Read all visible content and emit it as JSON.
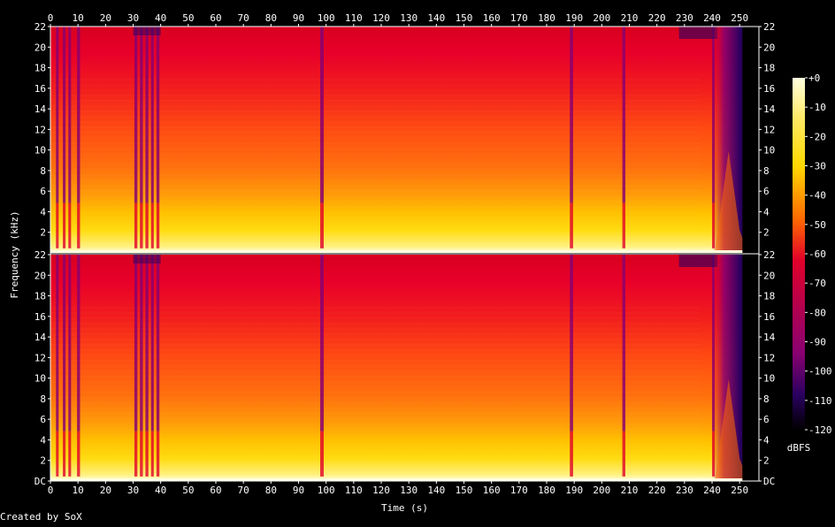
{
  "chart_data": {
    "type": "heatmap",
    "subtype": "spectrogram",
    "xlabel": "Time (s)",
    "ylabel": "Frequency (kHz)",
    "xlim": [
      0,
      257
    ],
    "x_ticks": [
      "0",
      "10",
      "20",
      "30",
      "40",
      "50",
      "60",
      "70",
      "80",
      "90",
      "100",
      "110",
      "120",
      "130",
      "140",
      "150",
      "160",
      "170",
      "180",
      "190",
      "200",
      "210",
      "220",
      "230",
      "240",
      "250"
    ],
    "channels": [
      {
        "ylim": [
          0,
          22
        ],
        "y_ticks": [
          "2",
          "4",
          "6",
          "8",
          "10",
          "12",
          "14",
          "16",
          "18",
          "20",
          "22"
        ]
      },
      {
        "ylim": [
          0,
          22
        ],
        "y_ticks": [
          "DC",
          "2",
          "4",
          "6",
          "8",
          "10",
          "12",
          "14",
          "16",
          "18",
          "20",
          "22"
        ]
      }
    ],
    "colorbar": {
      "unit": "dBFS",
      "range": [
        -120,
        0
      ],
      "ticks": [
        "+0",
        "-10",
        "-20",
        "-30",
        "-40",
        "-50",
        "-60",
        "-70",
        "-80",
        "-90",
        "-100",
        "-110",
        "-120"
      ]
    },
    "colors": {
      "background": "#000000",
      "loud": "#ffffe0",
      "high": "#ffd800",
      "mid": "#ff6a00",
      "low": "#e0002a",
      "quieter": "#8a0070",
      "quiet": "#2a0060",
      "silent": "#000000"
    },
    "dips": [
      {
        "t": 2.5,
        "w": 0.5
      },
      {
        "t": 5,
        "w": 0.5
      },
      {
        "t": 7,
        "w": 0.5
      },
      {
        "t": 10.2,
        "w": 0.6
      },
      {
        "t": 31,
        "w": 0.6
      },
      {
        "t": 33,
        "w": 0.6
      },
      {
        "t": 35,
        "w": 0.6
      },
      {
        "t": 37,
        "w": 0.5
      },
      {
        "t": 39,
        "w": 0.6
      },
      {
        "t": 98.5,
        "w": 0.8
      },
      {
        "t": 189,
        "w": 0.7
      },
      {
        "t": 208,
        "w": 0.6
      },
      {
        "t": 240.5,
        "w": 0.5
      }
    ]
  },
  "footer": {
    "credit": "Created by SoX"
  }
}
